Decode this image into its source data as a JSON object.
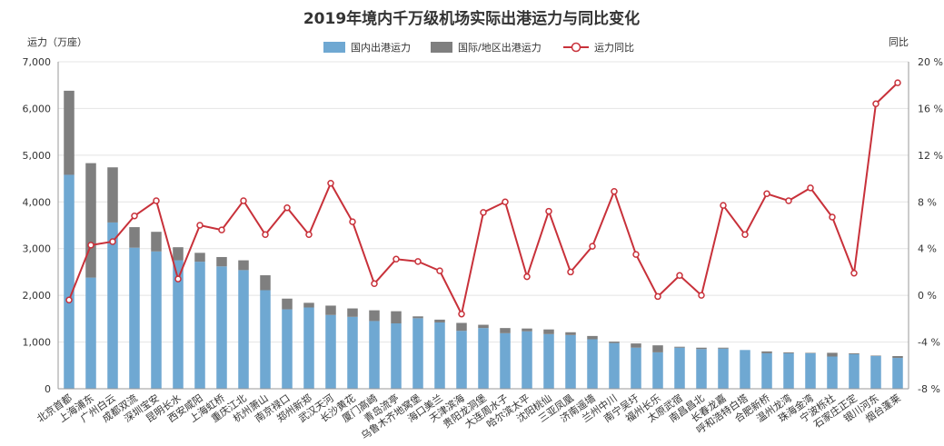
{
  "chart_data": {
    "type": "bar",
    "title": "2019年境内千万级机场实际出港运力与同比变化",
    "ylabel": "运力（万座）",
    "y2label": "同比",
    "ylim": [
      0,
      7000
    ],
    "yticks": [
      "0",
      "1,000",
      "2,000",
      "3,000",
      "4,000",
      "5,000",
      "6,000",
      "7,000"
    ],
    "y2lim": [
      -8,
      20
    ],
    "y2ticks": [
      "-8 %",
      "-4 %",
      "0 %",
      "4 %",
      "8 %",
      "12 %",
      "16 %",
      "20 %"
    ],
    "stacked": true,
    "legend_position": "top-center",
    "grid": true,
    "categories": [
      "北京首都",
      "上海浦东",
      "广州白云",
      "成都双流",
      "深圳宝安",
      "昆明长水",
      "西安咸阳",
      "上海虹桥",
      "重庆江北",
      "杭州萧山",
      "南京禄口",
      "郑州新郑",
      "武汉天河",
      "长沙黄花",
      "厦门高崎",
      "青岛流亭",
      "乌鲁木齐地窝堡",
      "海口美兰",
      "天津滨海",
      "贵阳龙洞堡",
      "大连周水子",
      "哈尔滨太平",
      "沈阳桃仙",
      "三亚凤凰",
      "济南遥墙",
      "兰州中川",
      "南宁吴圩",
      "福州长乐",
      "太原武宿",
      "南昌昌北",
      "长春龙嘉",
      "呼和浩特白塔",
      "合肥新桥",
      "温州龙湾",
      "珠海金湾",
      "宁波栎社",
      "石家庄正定",
      "银川河东",
      "烟台蓬莱"
    ],
    "series": [
      {
        "name": "国内出港运力",
        "type": "bar",
        "color": "#6fa8d2",
        "values": [
          4580,
          2380,
          3560,
          3020,
          2940,
          2750,
          2720,
          2620,
          2540,
          2110,
          1700,
          1740,
          1580,
          1540,
          1450,
          1400,
          1510,
          1420,
          1240,
          1300,
          1190,
          1230,
          1170,
          1150,
          1060,
          980,
          880,
          780,
          880,
          850,
          860,
          830,
          760,
          760,
          760,
          690,
          740,
          700,
          660
        ]
      },
      {
        "name": "国际/地区出港运力",
        "type": "bar",
        "color": "#7f7f7f",
        "values": [
          1800,
          2450,
          1180,
          440,
          420,
          280,
          190,
          200,
          210,
          320,
          230,
          100,
          200,
          180,
          230,
          260,
          40,
          60,
          170,
          70,
          110,
          60,
          100,
          60,
          70,
          30,
          90,
          150,
          20,
          30,
          20,
          0,
          40,
          20,
          10,
          80,
          20,
          10,
          40
        ]
      },
      {
        "name": "运力同比",
        "type": "line",
        "axis": "right",
        "color": "#c8313a",
        "values": [
          -0.4,
          4.3,
          4.6,
          6.8,
          8.1,
          1.4,
          6.0,
          5.6,
          8.1,
          5.2,
          7.5,
          5.2,
          9.6,
          6.3,
          1.0,
          3.1,
          2.9,
          2.1,
          -1.6,
          7.1,
          8.0,
          1.6,
          7.2,
          2.0,
          4.2,
          8.9,
          3.5,
          -0.1,
          1.7,
          0.0,
          7.7,
          5.2,
          8.7,
          8.1,
          9.2,
          6.7,
          1.9,
          16.4,
          18.2
        ]
      }
    ]
  }
}
